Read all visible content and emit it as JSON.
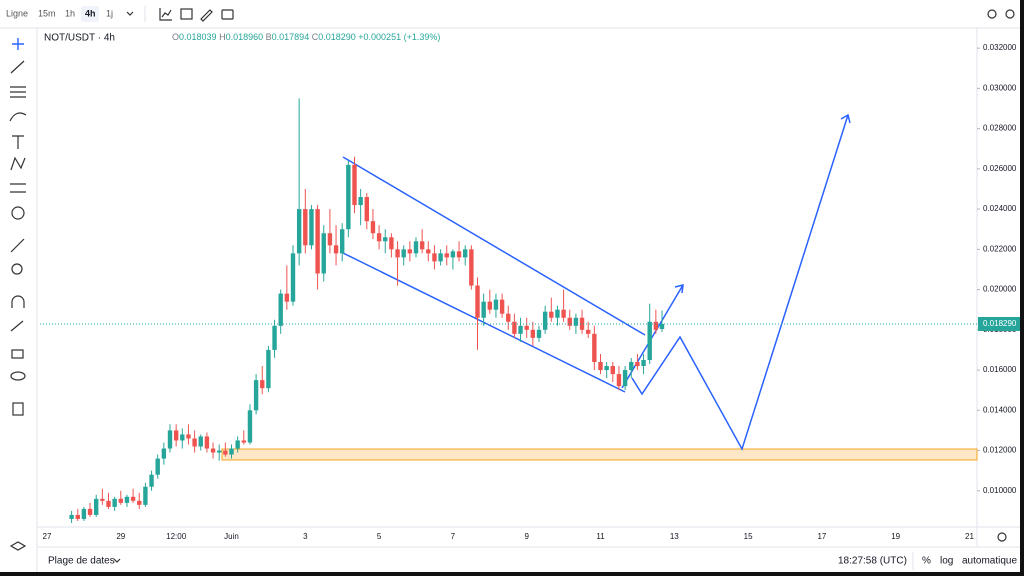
{
  "ui": {
    "chart_style": "Ligne",
    "intervals": [
      "15m",
      "1h",
      "4h",
      "1j"
    ],
    "symbol": "NOT/USDT · 4h",
    "ohlc": [
      {
        "label": "O",
        "value": "0.018039"
      },
      {
        "label": "H",
        "value": "0.018960"
      },
      {
        "label": "B",
        "value": "0.017894"
      },
      {
        "label": "C",
        "value": "0.018290"
      }
    ],
    "change": "+0.000251 (+1.39%)",
    "date_range": "Plage de dates",
    "clock": "18:27:58 (UTC)",
    "percent": "%",
    "log": "log",
    "auto": "automatique"
  },
  "chart_data": {
    "type": "candlestick",
    "up_color": "#26a69a",
    "down_color": "#ef5350",
    "grid": false,
    "ylim": [
      0.0082,
      0.033
    ],
    "yticks": [
      {
        "value": 0.01,
        "label": "0.010000"
      },
      {
        "value": 0.012,
        "label": "0.012000"
      },
      {
        "value": 0.014,
        "label": "0.014000"
      },
      {
        "value": 0.016,
        "label": "0.016000"
      },
      {
        "value": 0.018,
        "label": "0.018000"
      },
      {
        "value": 0.02,
        "label": "0.020000"
      },
      {
        "value": 0.022,
        "label": "0.022000"
      },
      {
        "value": 0.024,
        "label": "0.024000"
      },
      {
        "value": 0.026,
        "label": "0.026000"
      },
      {
        "value": 0.028,
        "label": "0.028000"
      },
      {
        "value": 0.03,
        "label": "0.030000"
      },
      {
        "value": 0.032,
        "label": "0.032000"
      }
    ],
    "last_price": {
      "value": 0.01829,
      "label": "0.018290"
    },
    "categories": [
      "27",
      null,
      null,
      null,
      null,
      null,
      null,
      null,
      null,
      null,
      null,
      null,
      "29",
      null,
      null,
      null,
      null,
      null,
      null,
      null,
      null,
      "12:00",
      null,
      null,
      null,
      null,
      null,
      null,
      null,
      null,
      "Juin",
      null,
      null,
      null,
      null,
      null,
      null,
      null,
      null,
      null,
      null,
      null,
      "3",
      null,
      null,
      null,
      null,
      null,
      null,
      null,
      null,
      null,
      null,
      null,
      "5",
      null,
      null,
      null,
      null,
      null,
      null,
      null,
      null,
      null,
      null,
      null,
      "7",
      null,
      null,
      null,
      null,
      null,
      null,
      null,
      null,
      null,
      null,
      null,
      "9",
      null,
      null,
      null,
      null,
      null,
      null,
      null,
      null,
      null,
      null,
      null,
      "11",
      null,
      null,
      null,
      null,
      null,
      null,
      null,
      null,
      null,
      null,
      null,
      "13",
      null,
      null,
      null,
      null,
      null,
      null,
      null,
      null,
      null,
      null,
      null,
      "15",
      null,
      null,
      null,
      null,
      null,
      null,
      null,
      null,
      null,
      null,
      null,
      "17",
      null,
      null,
      null,
      null,
      null,
      null,
      null,
      null,
      null,
      null,
      null,
      "19",
      null,
      null,
      null,
      null,
      null,
      null,
      null,
      null,
      null,
      null,
      null,
      "21"
    ],
    "values": [
      null,
      null,
      null,
      null,
      [
        0.0086,
        0.009,
        0.0084,
        0.0088
      ],
      [
        0.0088,
        0.0091,
        0.0085,
        0.0086
      ],
      [
        0.0086,
        0.0092,
        0.0085,
        0.0091
      ],
      [
        0.0091,
        0.0094,
        0.0087,
        0.0088
      ],
      [
        0.0088,
        0.0098,
        0.0087,
        0.0096
      ],
      [
        0.0096,
        0.0101,
        0.0093,
        0.0095
      ],
      [
        0.0095,
        0.0099,
        0.0091,
        0.0092
      ],
      [
        0.0092,
        0.0097,
        0.009,
        0.0096
      ],
      [
        0.0096,
        0.01,
        0.0093,
        0.0094
      ],
      [
        0.0094,
        0.0098,
        0.0092,
        0.0097
      ],
      [
        0.0097,
        0.0101,
        0.0094,
        0.0095
      ],
      [
        0.0095,
        0.0099,
        0.0091,
        0.0093
      ],
      [
        0.0093,
        0.0104,
        0.0092,
        0.0102
      ],
      [
        0.0102,
        0.011,
        0.01,
        0.0108
      ],
      [
        0.0108,
        0.0118,
        0.0106,
        0.0116
      ],
      [
        0.0116,
        0.0124,
        0.0113,
        0.0121
      ],
      [
        0.0121,
        0.0133,
        0.0119,
        0.013
      ],
      [
        0.013,
        0.0133,
        0.0122,
        0.0125
      ],
      [
        0.0125,
        0.0131,
        0.0121,
        0.0128
      ],
      [
        0.0128,
        0.0133,
        0.0123,
        0.0126
      ],
      [
        0.0126,
        0.013,
        0.0119,
        0.0122
      ],
      [
        0.0122,
        0.0128,
        0.012,
        0.0127
      ],
      [
        0.0127,
        0.0129,
        0.0119,
        0.0121
      ],
      [
        0.0121,
        0.0124,
        0.0116,
        0.0119
      ],
      [
        0.0119,
        0.0123,
        0.0115,
        0.012
      ],
      [
        0.012,
        0.0124,
        0.0117,
        0.0118
      ],
      [
        0.0118,
        0.0123,
        0.0116,
        0.0121
      ],
      [
        0.0121,
        0.0127,
        0.0119,
        0.0125
      ],
      [
        0.0125,
        0.013,
        0.0123,
        0.0124
      ],
      [
        0.0124,
        0.0143,
        0.0123,
        0.014
      ],
      [
        0.014,
        0.0158,
        0.0138,
        0.0155
      ],
      [
        0.0155,
        0.0162,
        0.0148,
        0.0151
      ],
      [
        0.0151,
        0.0172,
        0.0149,
        0.017
      ],
      [
        0.017,
        0.0185,
        0.0166,
        0.0182
      ],
      [
        0.0182,
        0.02,
        0.0178,
        0.0198
      ],
      [
        0.0198,
        0.0212,
        0.019,
        0.0194
      ],
      [
        0.0194,
        0.0222,
        0.0192,
        0.0218
      ],
      [
        0.0218,
        0.0295,
        0.0212,
        0.024
      ],
      [
        0.024,
        0.025,
        0.0218,
        0.0222
      ],
      [
        0.0222,
        0.0242,
        0.022,
        0.024
      ],
      [
        0.024,
        0.0242,
        0.02,
        0.0208
      ],
      [
        0.0208,
        0.0232,
        0.0204,
        0.0228
      ],
      [
        0.0228,
        0.024,
        0.0218,
        0.0222
      ],
      [
        0.0222,
        0.0232,
        0.0212,
        0.0218
      ],
      [
        0.0218,
        0.0233,
        0.0214,
        0.023
      ],
      [
        0.023,
        0.0264,
        0.0226,
        0.0262
      ],
      [
        0.0262,
        0.0266,
        0.0238,
        0.0242
      ],
      [
        0.0242,
        0.025,
        0.0232,
        0.0246
      ],
      [
        0.0246,
        0.0248,
        0.023,
        0.0234
      ],
      [
        0.0234,
        0.024,
        0.0225,
        0.0228
      ],
      [
        0.0228,
        0.0232,
        0.022,
        0.0224
      ],
      [
        0.0224,
        0.023,
        0.0218,
        0.0226
      ],
      [
        0.0226,
        0.0228,
        0.0216,
        0.022
      ],
      [
        0.022,
        0.0224,
        0.0202,
        0.0216
      ],
      [
        0.0216,
        0.0222,
        0.0212,
        0.022
      ],
      [
        0.022,
        0.0224,
        0.0214,
        0.0218
      ],
      [
        0.0218,
        0.0226,
        0.0216,
        0.0224
      ],
      [
        0.0224,
        0.023,
        0.0218,
        0.022
      ],
      [
        0.022,
        0.0224,
        0.0214,
        0.0218
      ],
      [
        0.0218,
        0.0222,
        0.021,
        0.0214
      ],
      [
        0.0214,
        0.022,
        0.0212,
        0.0218
      ],
      [
        0.0218,
        0.0222,
        0.0212,
        0.0216
      ],
      [
        0.0216,
        0.022,
        0.021,
        0.0219
      ],
      [
        0.0219,
        0.0224,
        0.0214,
        0.0216
      ],
      [
        0.0216,
        0.0222,
        0.0212,
        0.022
      ],
      [
        0.022,
        0.0222,
        0.02,
        0.0202
      ],
      [
        0.0202,
        0.0206,
        0.017,
        0.0186
      ],
      [
        0.0186,
        0.0198,
        0.0182,
        0.0194
      ],
      [
        0.0194,
        0.02,
        0.0188,
        0.019
      ],
      [
        0.019,
        0.0198,
        0.0186,
        0.0195
      ],
      [
        0.0195,
        0.0198,
        0.0186,
        0.0188
      ],
      [
        0.0188,
        0.0192,
        0.018,
        0.0184
      ],
      [
        0.0184,
        0.0188,
        0.0176,
        0.0178
      ],
      [
        0.0178,
        0.0186,
        0.0174,
        0.0182
      ],
      [
        0.0182,
        0.0186,
        0.0176,
        0.018
      ],
      [
        0.018,
        0.0184,
        0.0172,
        0.0176
      ],
      [
        0.0176,
        0.0182,
        0.0174,
        0.018
      ],
      [
        0.018,
        0.0192,
        0.0178,
        0.0189
      ],
      [
        0.0189,
        0.0196,
        0.0184,
        0.0186
      ],
      [
        0.0186,
        0.0192,
        0.0182,
        0.019
      ],
      [
        0.019,
        0.02,
        0.0184,
        0.0186
      ],
      [
        0.0186,
        0.019,
        0.018,
        0.0182
      ],
      [
        0.0182,
        0.0188,
        0.0178,
        0.0186
      ],
      [
        0.0186,
        0.019,
        0.0178,
        0.018
      ],
      [
        0.018,
        0.0184,
        0.0176,
        0.0178
      ],
      [
        0.0178,
        0.0182,
        0.016,
        0.0164
      ],
      [
        0.0164,
        0.0168,
        0.0158,
        0.016
      ],
      [
        0.016,
        0.0164,
        0.0156,
        0.0162
      ],
      [
        0.0162,
        0.0164,
        0.0154,
        0.0158
      ],
      [
        0.0158,
        0.0162,
        0.015,
        0.0152
      ],
      [
        0.0152,
        0.0162,
        0.015,
        0.016
      ],
      [
        0.016,
        0.0166,
        0.0156,
        0.0164
      ],
      [
        0.0164,
        0.0168,
        0.016,
        0.0162
      ],
      [
        0.0162,
        0.0168,
        0.0158,
        0.0165
      ],
      [
        0.0165,
        0.0193,
        0.0163,
        0.0184
      ],
      [
        0.0184,
        0.019,
        0.0178,
        0.018
      ],
      [
        0.018039,
        0.01896,
        0.017894,
        0.01829
      ],
      null,
      null,
      null,
      null,
      null,
      null,
      null,
      null,
      null,
      null,
      null,
      null,
      null,
      null,
      null,
      null,
      null,
      null,
      null,
      null,
      null,
      null,
      null,
      null,
      null,
      null,
      null,
      null,
      null,
      null,
      null,
      null,
      null,
      null,
      null,
      null,
      null,
      null,
      null,
      null,
      null,
      null,
      null,
      null,
      null,
      null,
      null,
      null,
      null,
      null
    ]
  }
}
